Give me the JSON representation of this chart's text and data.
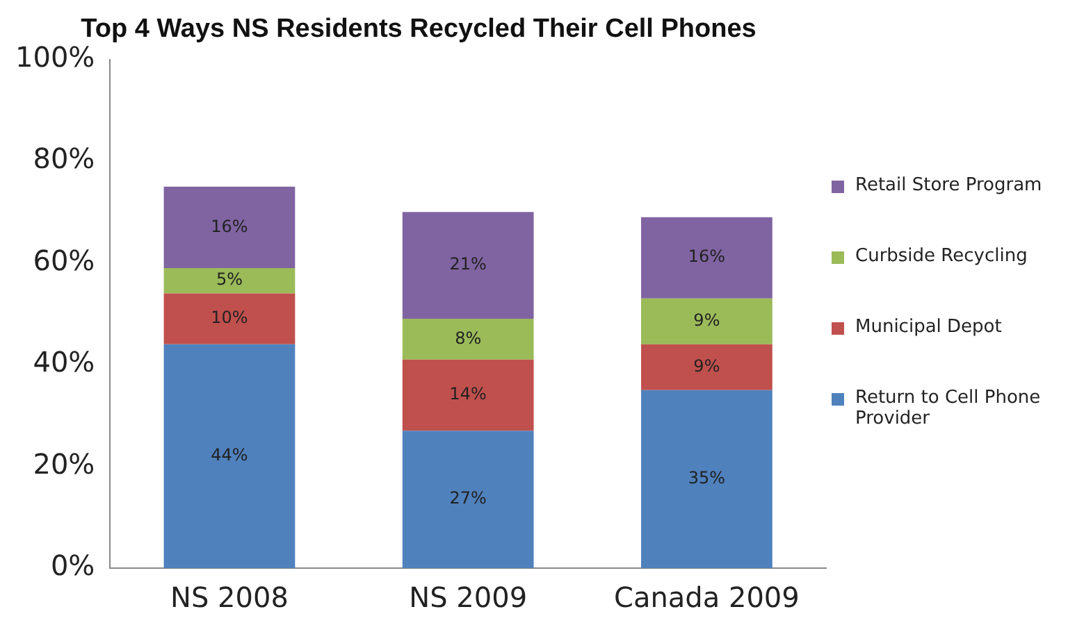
{
  "chart_data": {
    "type": "bar",
    "title": "Top 4 Ways NS Residents Recycled Their Cell Phones",
    "stacked": true,
    "categories": [
      "NS 2008",
      "NS 2009",
      "Canada 2009"
    ],
    "series": [
      {
        "name": "Return to Cell Phone Provider",
        "color": "#4f81bd",
        "values": [
          44,
          27,
          35
        ],
        "value_labels": [
          "44%",
          "27%",
          "35%"
        ]
      },
      {
        "name": "Municipal Depot",
        "color": "#c0504d",
        "values": [
          10,
          14,
          9
        ],
        "value_labels": [
          "10%",
          "14%",
          "9%"
        ]
      },
      {
        "name": "Curbside Recycling",
        "color": "#9bbb59",
        "values": [
          5,
          8,
          9
        ],
        "value_labels": [
          "5%",
          "8%",
          "9%"
        ]
      },
      {
        "name": "Retail Store Program",
        "color": "#8064a2",
        "values": [
          16,
          21,
          16
        ],
        "value_labels": [
          "16%",
          "21%",
          "16%"
        ]
      }
    ],
    "ylim": [
      0,
      100
    ],
    "yticks": [
      {
        "value": 0,
        "label": "0%"
      },
      {
        "value": 20,
        "label": "20%"
      },
      {
        "value": 40,
        "label": "40%"
      },
      {
        "value": 60,
        "label": "60%"
      },
      {
        "value": 80,
        "label": "80%"
      },
      {
        "value": 100,
        "label": "100%"
      }
    ],
    "grid": false,
    "legend": "right"
  }
}
